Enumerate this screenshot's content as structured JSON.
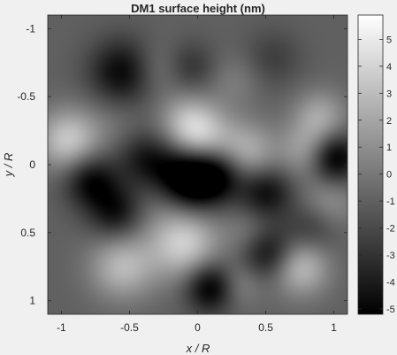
{
  "chart_data": {
    "type": "heatmap",
    "title": "DM1 surface height (nm)",
    "xlabel": "x / R",
    "ylabel": "y / R",
    "xlim": [
      -1.1,
      1.1
    ],
    "ylim": [
      -1.1,
      1.1
    ],
    "y_reversed": true,
    "x_ticks": [
      -1,
      -0.5,
      0,
      0.5,
      1
    ],
    "x_tick_labels": [
      "-1",
      "-0.5",
      "0",
      "0.5",
      "1"
    ],
    "y_ticks": [
      -1,
      -0.5,
      0,
      0.5,
      1
    ],
    "y_tick_labels": [
      "-1",
      "-0.5",
      "0",
      "0.5",
      "1"
    ],
    "colormap": "gray",
    "clim": [
      -5.2,
      5.9
    ],
    "colorbar": {
      "ticks": [
        5,
        4,
        3,
        2,
        1,
        0,
        -1,
        -2,
        -3,
        -4,
        -5
      ],
      "tick_labels": [
        "5",
        "4",
        "3",
        "2",
        "1",
        "0",
        "-1",
        "-2",
        "-3",
        "-4",
        "-5"
      ]
    },
    "background_value": -1.0,
    "features": [
      {
        "x": -0.95,
        "y": -0.18,
        "value": 4.5,
        "sigma": 0.16
      },
      {
        "x": -0.78,
        "y": 0.12,
        "value": -4.0,
        "sigma": 0.14
      },
      {
        "x": -0.55,
        "y": 0.75,
        "value": 3.8,
        "sigma": 0.17
      },
      {
        "x": -0.55,
        "y": -0.68,
        "value": -4.0,
        "sigma": 0.17
      },
      {
        "x": -0.62,
        "y": -0.3,
        "value": 0.8,
        "sigma": 0.16
      },
      {
        "x": -0.4,
        "y": -0.05,
        "value": -2.5,
        "sigma": 0.14
      },
      {
        "x": -0.6,
        "y": 0.35,
        "value": -3.5,
        "sigma": 0.14
      },
      {
        "x": -0.3,
        "y": 0.3,
        "value": 0.8,
        "sigma": 0.15
      },
      {
        "x": -0.15,
        "y": 0.05,
        "value": -3.5,
        "sigma": 0.17
      },
      {
        "x": -0.1,
        "y": -0.35,
        "value": 1.5,
        "sigma": 0.14
      },
      {
        "x": -0.3,
        "y": -0.7,
        "value": 1.5,
        "sigma": 0.14
      },
      {
        "x": -0.05,
        "y": -0.72,
        "value": -2.0,
        "sigma": 0.13
      },
      {
        "x": 0.0,
        "y": -0.22,
        "value": 5.0,
        "sigma": 0.16
      },
      {
        "x": 0.0,
        "y": 0.12,
        "value": -4.5,
        "sigma": 0.15
      },
      {
        "x": 0.18,
        "y": 0.06,
        "value": -3.5,
        "sigma": 0.14
      },
      {
        "x": -0.1,
        "y": 0.58,
        "value": 4.8,
        "sigma": 0.18
      },
      {
        "x": 0.1,
        "y": 0.9,
        "value": -4.8,
        "sigma": 0.13
      },
      {
        "x": 0.3,
        "y": 0.88,
        "value": 2.0,
        "sigma": 0.12
      },
      {
        "x": 0.28,
        "y": -0.62,
        "value": 1.2,
        "sigma": 0.14
      },
      {
        "x": 0.35,
        "y": -0.08,
        "value": 3.8,
        "sigma": 0.16
      },
      {
        "x": 0.5,
        "y": 0.2,
        "value": -3.8,
        "sigma": 0.14
      },
      {
        "x": 0.38,
        "y": 0.5,
        "value": 1.5,
        "sigma": 0.13
      },
      {
        "x": 0.52,
        "y": 0.65,
        "value": -4.0,
        "sigma": 0.14
      },
      {
        "x": 0.75,
        "y": 0.75,
        "value": 4.2,
        "sigma": 0.15
      },
      {
        "x": 0.55,
        "y": -0.78,
        "value": -1.5,
        "sigma": 0.15
      },
      {
        "x": 0.9,
        "y": -0.35,
        "value": 3.0,
        "sigma": 0.14
      },
      {
        "x": 1.0,
        "y": -0.05,
        "value": -5.0,
        "sigma": 0.13
      },
      {
        "x": 0.95,
        "y": 0.3,
        "value": 2.5,
        "sigma": 0.15
      },
      {
        "x": 0.8,
        "y": -0.1,
        "value": 2.8,
        "sigma": 0.14
      },
      {
        "x": 0.85,
        "y": 0.45,
        "value": -2.5,
        "sigma": 0.14
      }
    ]
  }
}
